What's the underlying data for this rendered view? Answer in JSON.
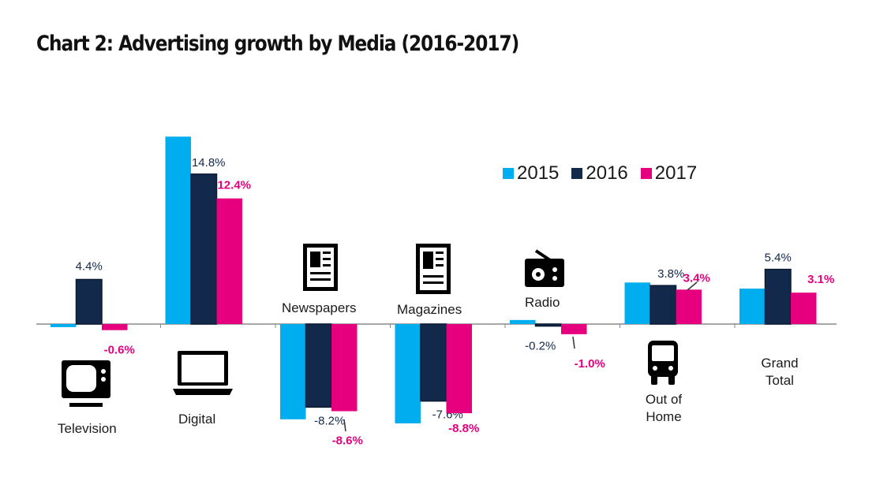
{
  "chart_data": {
    "type": "bar",
    "title": "Chart 2: Advertising growth by Media (2016-2017)",
    "xlabel": "",
    "ylabel": "",
    "ylim": [
      -10,
      19
    ],
    "grid": false,
    "legend_position": "top-right",
    "categories": [
      "Television",
      "Digital",
      "Newspapers",
      "Magazines",
      "Radio",
      "Out of Home",
      "Grand Total"
    ],
    "category_icons": [
      "tv-icon",
      "laptop-icon",
      "newspaper-icon",
      "magazine-icon",
      "radio-icon",
      "bus-icon",
      ""
    ],
    "series": [
      {
        "name": "2015",
        "color": "#00aeef",
        "values": [
          -0.3,
          18.5,
          -9.4,
          -9.8,
          0.4,
          4.1,
          3.5
        ],
        "labels": [
          "",
          "",
          "",
          "",
          "",
          "",
          ""
        ]
      },
      {
        "name": "2016",
        "color": "#13294b",
        "values": [
          4.4,
          14.8,
          -8.2,
          -7.6,
          -0.2,
          3.8,
          5.4
        ],
        "labels": [
          "4.4%",
          "14.8%",
          "-8.2%",
          "-7.6%",
          "-0.2%",
          "3.8%",
          "5.4%"
        ]
      },
      {
        "name": "2017",
        "color": "#e6007e",
        "values": [
          -0.6,
          12.4,
          -8.6,
          -8.8,
          -1.0,
          3.4,
          3.1
        ],
        "labels": [
          "-0.6%",
          "12.4%",
          "-8.6%",
          "-8.8%",
          "-1.0%",
          "3.4%",
          "3.1%"
        ]
      }
    ]
  }
}
